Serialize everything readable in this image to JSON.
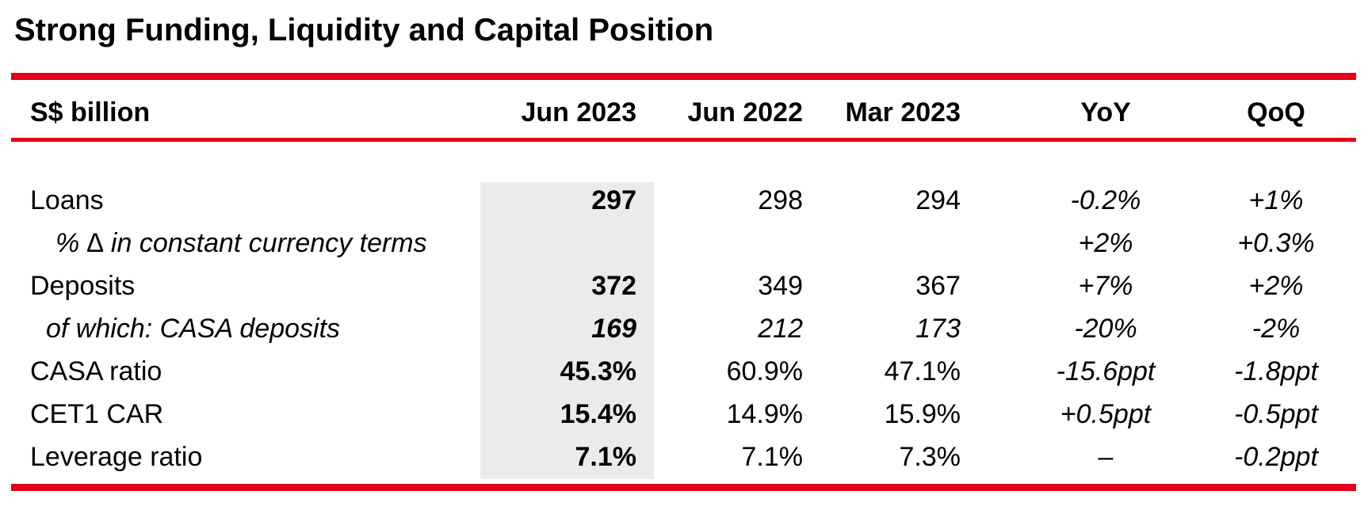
{
  "title": "Strong Funding, Liquidity and Capital Position",
  "colors": {
    "accent_red": "#e3001b",
    "highlight_gray": "#ebebeb"
  },
  "table": {
    "unit_header": "S$ billion",
    "columns": [
      "Jun 2023",
      "Jun 2022",
      "Mar 2023",
      "YoY",
      "QoQ"
    ],
    "rows": [
      {
        "label": "Loans",
        "jun2023": "297",
        "jun2022": "298",
        "mar2023": "294",
        "yoy": "-0.2%",
        "qoq": "+1%"
      },
      {
        "label": "% ∆ in constant currency terms",
        "jun2023": "",
        "jun2022": "",
        "mar2023": "",
        "yoy": "+2%",
        "qoq": "+0.3%"
      },
      {
        "label": "Deposits",
        "jun2023": "372",
        "jun2022": "349",
        "mar2023": "367",
        "yoy": "+7%",
        "qoq": "+2%"
      },
      {
        "label": "of which: CASA deposits",
        "jun2023": "169",
        "jun2022": "212",
        "mar2023": "173",
        "yoy": "-20%",
        "qoq": "-2%"
      },
      {
        "label": "CASA ratio",
        "jun2023": "45.3%",
        "jun2022": "60.9%",
        "mar2023": "47.1%",
        "yoy": "-15.6ppt",
        "qoq": "-1.8ppt"
      },
      {
        "label": "CET1 CAR",
        "jun2023": "15.4%",
        "jun2022": "14.9%",
        "mar2023": "15.9%",
        "yoy": "+0.5ppt",
        "qoq": "-0.5ppt"
      },
      {
        "label": "Leverage ratio",
        "jun2023": "7.1%",
        "jun2022": "7.1%",
        "mar2023": "7.3%",
        "yoy": "–",
        "qoq": "-0.2ppt"
      }
    ]
  }
}
